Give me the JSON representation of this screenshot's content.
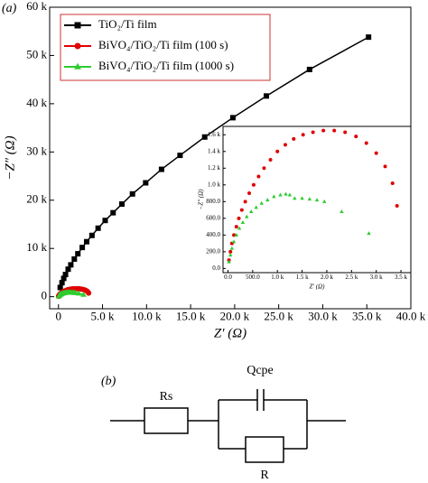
{
  "chart_data": [
    {
      "type": "scatter",
      "panel_label": "(a)",
      "xlabel": "Z′ (Ω)",
      "ylabel": "−Z″ (Ω)",
      "xlim": [
        -1000,
        40000
      ],
      "ylim": [
        -2500,
        60000
      ],
      "xticks": [
        0,
        {
          "value": 5000,
          "label": "5.0 k"
        },
        {
          "value": 10000,
          "label": "10.0 k"
        },
        {
          "value": 15000,
          "label": "15.0 k"
        },
        {
          "value": 20000,
          "label": "20.0 k"
        },
        {
          "value": 25000,
          "label": "25.0 k"
        },
        {
          "value": 30000,
          "label": "30.0 k"
        },
        {
          "value": 35000,
          "label": "35.0 k"
        },
        {
          "value": 40000,
          "label": "40.0 k"
        }
      ],
      "yticks": [
        0,
        {
          "value": 10000,
          "label": "10 k"
        },
        {
          "value": 20000,
          "label": "20 k"
        },
        {
          "value": 30000,
          "label": "30 k"
        },
        {
          "value": 40000,
          "label": "40 k"
        },
        {
          "value": 50000,
          "label": "50 k"
        },
        {
          "value": 60000,
          "label": "60 k"
        }
      ],
      "grid": false,
      "connect": true,
      "legend": "upper left",
      "series": [
        {
          "name": "TiO₂/Ti film",
          "color": "#000000",
          "marker": "square",
          "x": [
            200,
            400,
            600,
            800,
            1100,
            1400,
            1800,
            2200,
            2700,
            3200,
            3800,
            4500,
            5300,
            6200,
            7200,
            8400,
            9900,
            11700,
            13800,
            16600,
            19800,
            23600,
            28500,
            35200
          ],
          "values": [
            1900,
            2900,
            3800,
            4600,
            5700,
            6600,
            7800,
            8900,
            10200,
            11400,
            12700,
            14200,
            15800,
            17400,
            19200,
            21300,
            23600,
            26400,
            29300,
            33100,
            37100,
            41600,
            47100,
            53800
          ]
        },
        {
          "name": "BiVO₄/TiO₂/Ti film (100 s)",
          "color": "#e00000",
          "marker": "circle",
          "x": [
            20,
            50,
            80,
            120,
            170,
            220,
            280,
            350,
            430,
            520,
            620,
            730,
            860,
            1000,
            1160,
            1330,
            1520,
            1720,
            1930,
            2150,
            2370,
            2590,
            2800,
            3000,
            3180,
            3330,
            3420
          ],
          "values": [
            100,
            200,
            300,
            400,
            500,
            600,
            700,
            800,
            900,
            1000,
            1100,
            1200,
            1300,
            1400,
            1480,
            1550,
            1600,
            1630,
            1650,
            1650,
            1630,
            1580,
            1500,
            1380,
            1220,
            1020,
            750
          ]
        },
        {
          "name": "BiVO₄/TiO₂/Ti film (1000 s)",
          "color": "#2ecc2e",
          "marker": "triangle",
          "x": [
            20,
            50,
            80,
            120,
            170,
            230,
            300,
            380,
            470,
            570,
            680,
            800,
            930,
            1060,
            1170,
            1250,
            1350,
            1500,
            1650,
            1800,
            1950,
            2300,
            2850
          ],
          "values": [
            80,
            160,
            240,
            320,
            400,
            480,
            550,
            620,
            680,
            730,
            780,
            820,
            860,
            880,
            890,
            880,
            840,
            840,
            830,
            820,
            800,
            680,
            420
          ]
        }
      ]
    },
    {
      "type": "scatter",
      "xlabel": "Z′ (Ω)",
      "ylabel": "−Z″ (Ω)",
      "xlim": [
        -100,
        3700
      ],
      "ylim": [
        -50,
        1700
      ],
      "xticks": [
        {
          "value": 0,
          "label": "0.0"
        },
        {
          "value": 500,
          "label": "500.0"
        },
        {
          "value": 1000,
          "label": "1.0 k"
        },
        {
          "value": 1500,
          "label": "1.5 k"
        },
        {
          "value": 2000,
          "label": "2.0 k"
        },
        {
          "value": 2500,
          "label": "2.5 k"
        },
        {
          "value": 3000,
          "label": "3.0 k"
        },
        {
          "value": 3500,
          "label": "3.5 k"
        }
      ],
      "yticks": [
        {
          "value": 0,
          "label": "0.0"
        },
        {
          "value": 200,
          "label": "200.0"
        },
        {
          "value": 400,
          "label": "400.0"
        },
        {
          "value": 600,
          "label": "600.0"
        },
        {
          "value": 800,
          "label": "800.0"
        },
        {
          "value": 1000,
          "label": "1.0 k"
        },
        {
          "value": 1200,
          "label": "1.2 k"
        },
        {
          "value": 1400,
          "label": "1.4 k"
        },
        {
          "value": 1600,
          "label": "1.6 k"
        }
      ],
      "grid": false,
      "connect": false,
      "series": [
        {
          "color": "#e00000",
          "marker": "circle",
          "x": [
            20,
            50,
            80,
            120,
            170,
            220,
            280,
            350,
            430,
            520,
            620,
            730,
            860,
            1000,
            1160,
            1330,
            1520,
            1720,
            1930,
            2150,
            2370,
            2590,
            2800,
            3000,
            3180,
            3330,
            3420
          ],
          "values": [
            100,
            200,
            300,
            400,
            500,
            600,
            700,
            800,
            900,
            1000,
            1100,
            1200,
            1300,
            1400,
            1480,
            1550,
            1600,
            1630,
            1650,
            1650,
            1630,
            1580,
            1500,
            1380,
            1220,
            1020,
            750
          ]
        },
        {
          "color": "#2ecc2e",
          "marker": "triangle",
          "x": [
            20,
            50,
            80,
            120,
            170,
            230,
            300,
            380,
            470,
            570,
            680,
            800,
            930,
            1060,
            1170,
            1250,
            1350,
            1500,
            1650,
            1800,
            1950,
            2300,
            2850
          ],
          "values": [
            80,
            160,
            240,
            320,
            400,
            480,
            550,
            620,
            680,
            730,
            780,
            820,
            860,
            880,
            890,
            880,
            840,
            840,
            830,
            820,
            800,
            680,
            420
          ]
        }
      ]
    }
  ],
  "diagram": {
    "panel_label": "(b)",
    "rs": "Rs",
    "qcpe": "Qcpe",
    "r": "R"
  }
}
